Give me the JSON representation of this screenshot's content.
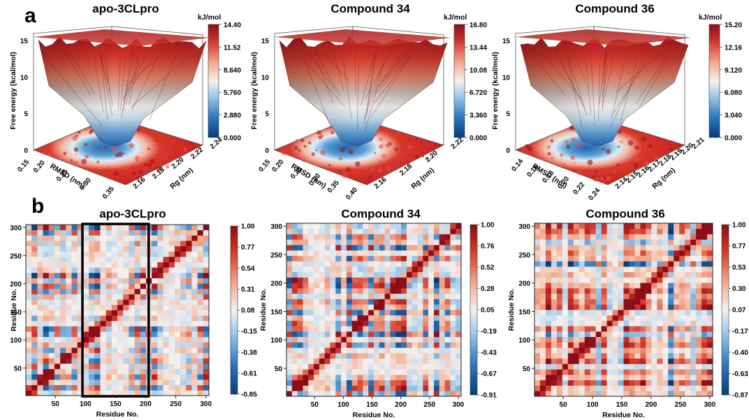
{
  "figure": {
    "panel_a_label": "a",
    "panel_b_label": "b"
  },
  "chart_data": [
    {
      "type": "surface3d",
      "panel": "a",
      "title": "apo-3CLpro",
      "zlabel": "Free energy (kcal/mol)",
      "xlabel": "RMSD (nm)",
      "ylabel": "Rg (nm)",
      "z_ticks": [
        "0",
        "5",
        "10",
        "15"
      ],
      "x_ticks": [
        "0.20",
        "0.25",
        "0.30",
        "0.35"
      ],
      "x_extra_tick": "0.15",
      "y_ticks": [
        "2.16",
        "2.18",
        "2.20",
        "2.22",
        "2.24"
      ],
      "colorbar": {
        "unit": "kJ/mol",
        "ticks": [
          "14.40",
          "11.52",
          "8.640",
          "5.760",
          "2.880",
          "0.000"
        ]
      }
    },
    {
      "type": "surface3d",
      "panel": "a",
      "title": "Compound 34",
      "zlabel": "Free energy (kcal/mol)",
      "xlabel": "RMSD (nm)",
      "ylabel": "Rg (nm)",
      "z_ticks": [
        "0",
        "5",
        "10",
        "15"
      ],
      "x_ticks": [
        "0.20",
        "0.25",
        "0.30",
        "0.35",
        "0.40"
      ],
      "x_extra_tick": "0.15",
      "y_ticks": [
        "2.16",
        "2.18",
        "2.20",
        "2.22"
      ],
      "colorbar": {
        "unit": "kJ/mol",
        "ticks": [
          "16.80",
          "13.44",
          "10.08",
          "6.720",
          "3.360",
          "0.000"
        ]
      }
    },
    {
      "type": "surface3d",
      "panel": "a",
      "title": "Compound 36",
      "zlabel": "Free energy (kcal/mol)",
      "xlabel": "RMSD (nm)",
      "ylabel": "Rg (nm)",
      "z_ticks": [
        "0",
        "5",
        "10",
        "15"
      ],
      "x_ticks": [
        "0.14",
        "0.16",
        "0.18",
        "0.20",
        "0.22",
        "0.24"
      ],
      "y_ticks": [
        "2.14",
        "2.15",
        "2.16",
        "2.17",
        "2.18",
        "2.19",
        "2.20",
        "2.21"
      ],
      "colorbar": {
        "unit": "kJ/mol",
        "ticks": [
          "15.20",
          "12.16",
          "9.120",
          "6.080",
          "3.040",
          "0.000"
        ]
      }
    },
    {
      "type": "heatmap",
      "panel": "b",
      "title": "apo-3CLpro",
      "xlabel": "Residue No.",
      "ylabel": "Residue No.",
      "x_ticks": [
        "50",
        "100",
        "150",
        "200",
        "250",
        "300"
      ],
      "y_ticks": [
        "50",
        "100",
        "150",
        "200",
        "250",
        "300"
      ],
      "range": [
        1,
        305
      ],
      "highlight_residues": [
        95,
        205
      ],
      "colorbar": {
        "ticks": [
          "1.00",
          "0.77",
          "0.54",
          "0.31",
          "0.08",
          "-0.15",
          "-0.38",
          "-0.61",
          "-0.85"
        ],
        "min": -0.85,
        "max": 1.0
      }
    },
    {
      "type": "heatmap",
      "panel": "b",
      "title": "Compound 34",
      "xlabel": "Residue No.",
      "ylabel": "Residue No.",
      "x_ticks": [
        "50",
        "100",
        "150",
        "200",
        "250",
        "300"
      ],
      "y_ticks": [
        "50",
        "100",
        "150",
        "200",
        "250",
        "300"
      ],
      "range": [
        1,
        305
      ],
      "colorbar": {
        "ticks": [
          "1.00",
          "0.76",
          "0.52",
          "0.28",
          "0.05",
          "-0.19",
          "-0.43",
          "-0.67",
          "-0.91"
        ],
        "min": -0.91,
        "max": 1.0
      }
    },
    {
      "type": "heatmap",
      "panel": "b",
      "title": "Compound 36",
      "xlabel": "Residue No.",
      "ylabel": "Residue No.",
      "x_ticks": [
        "50",
        "100",
        "150",
        "200",
        "250",
        "300"
      ],
      "y_ticks": [
        "50",
        "100",
        "150",
        "200",
        "250",
        "300"
      ],
      "range": [
        1,
        305
      ],
      "colorbar": {
        "ticks": [
          "1.00",
          "0.77",
          "0.53",
          "0.30",
          "0.07",
          "-0.17",
          "-0.40",
          "-0.63",
          "-0.87"
        ],
        "min": -0.87,
        "max": 1.0
      }
    }
  ],
  "colors": {
    "high": "#b2182b",
    "mid": "#f7f7f7",
    "low": "#2166ac",
    "floor_high": "#c0261c",
    "floor_low": "#3a78c0"
  }
}
